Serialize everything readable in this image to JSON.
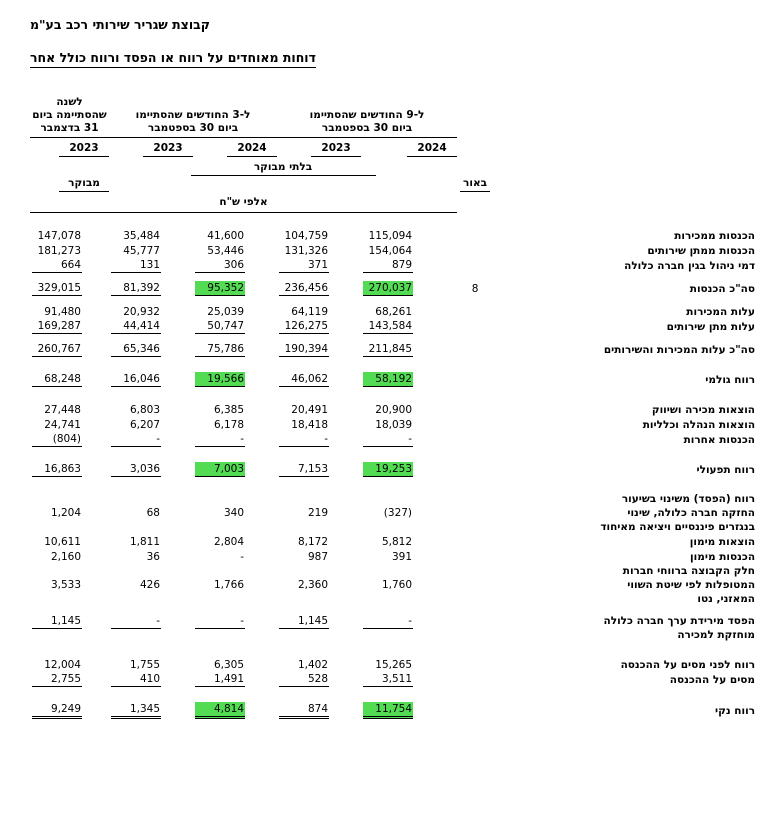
{
  "doc": {
    "company": "קבוצת שגריר שירותי רכב בע\"מ",
    "title": "דוחות מאוחדים על רווח או הפסד ורווח כולל אחר"
  },
  "table": {
    "highlight_color": "#54db54",
    "header": {
      "periods": [
        "ל-9 החודשים שהסתיימו\nביום 30 בספטמבר",
        "ל-3 החודשים שהסתיימו\nביום 30 בספטמבר",
        "לשנה\nשהסתיימה ביום\n31 בדצמבר"
      ],
      "years": [
        "2024",
        "2023",
        "2024",
        "2023",
        "2023"
      ],
      "unaudited": "בלתי מבוקר",
      "audited": "מבוקר",
      "note_col": "באור",
      "units": "אלפי ש\"ח"
    },
    "columns": [
      "9m_2024",
      "9m_2023",
      "3m_2024",
      "3m_2023",
      "fy_2023"
    ],
    "rows": [
      {
        "type": "sp",
        "size": "m"
      },
      {
        "label": "הכנסות ממכירות",
        "values": [
          "115,094",
          "104,759",
          "41,600",
          "35,484",
          "147,078"
        ]
      },
      {
        "label": "הכנסות ממתן שירותים",
        "values": [
          "154,064",
          "131,326",
          "53,446",
          "45,777",
          "181,273"
        ]
      },
      {
        "label": "דמי ניהול בגין חברה כלולה",
        "values": [
          "879",
          "371",
          "306",
          "131",
          "664"
        ],
        "rule": "single"
      },
      {
        "type": "sp",
        "size": "s"
      },
      {
        "label": "סה\"כ הכנסות",
        "note": "8",
        "values": [
          "270,037",
          "236,456",
          "95,352",
          "81,392",
          "329,015"
        ],
        "hl": [
          0,
          2
        ],
        "rule": "single"
      },
      {
        "type": "sp",
        "size": "s"
      },
      {
        "label": "עלות המכירות",
        "values": [
          "68,261",
          "64,119",
          "25,039",
          "20,932",
          "91,480"
        ]
      },
      {
        "label": "עלות מתן שירותים",
        "values": [
          "143,584",
          "126,275",
          "50,747",
          "44,414",
          "169,287"
        ],
        "rule": "single"
      },
      {
        "type": "sp",
        "size": "s"
      },
      {
        "label": "סה\"כ עלות המכירות והשירותים",
        "values": [
          "211,845",
          "190,394",
          "75,786",
          "65,346",
          "260,767"
        ],
        "rule": "single"
      },
      {
        "type": "sp",
        "size": "m"
      },
      {
        "label": "רווח גולמי",
        "values": [
          "58,192",
          "46,062",
          "19,566",
          "16,046",
          "68,248"
        ],
        "hl": [
          0,
          2
        ],
        "rule": "single"
      },
      {
        "type": "sp",
        "size": "m"
      },
      {
        "label": "הוצאות מכירה ושיווק",
        "values": [
          "20,900",
          "20,491",
          "6,385",
          "6,803",
          "27,448"
        ]
      },
      {
        "label": "הוצאות הנהלה וכלליות",
        "values": [
          "18,039",
          "18,418",
          "6,178",
          "6,207",
          "24,741"
        ]
      },
      {
        "label": "הכנסות אחרות",
        "values": [
          "-",
          "-",
          "-",
          "-",
          "(804)"
        ],
        "rule": "single"
      },
      {
        "type": "sp",
        "size": "m"
      },
      {
        "label": "רווח תפעולי",
        "values": [
          "19,253",
          "7,153",
          "7,003",
          "3,036",
          "16,863"
        ],
        "hl": [
          0,
          2
        ],
        "rule": "single"
      },
      {
        "type": "sp",
        "size": "m"
      },
      {
        "label": "רווח (הפסד) משינוי בשיעור\nהחזקה חברה כלולה, שינוי\nבנגזרים פיננסיים ויציאה מאיחוד",
        "values": [
          "(327)",
          "219",
          "340",
          "68",
          "1,204"
        ]
      },
      {
        "label": "הוצאות מימון",
        "values": [
          "5,812",
          "8,172",
          "2,804",
          "1,811",
          "10,611"
        ]
      },
      {
        "label": "הכנסות מימון",
        "values": [
          "391",
          "987",
          "-",
          "36",
          "2,160"
        ]
      },
      {
        "label": "חלק הקבוצה ברווחי חברות\nהמטופלות לפי שיטת השווי\nהמאזני, נטו",
        "values": [
          "1,760",
          "2,360",
          "1,766",
          "426",
          "3,533"
        ]
      },
      {
        "type": "sp",
        "size": "s"
      },
      {
        "label": "הפסד מירידת ערך חברה כלולה\nמוחזקת למכירה",
        "values": [
          "-",
          "1,145",
          "-",
          "-",
          "1,145"
        ],
        "rule": "single",
        "valign": "top"
      },
      {
        "type": "sp",
        "size": "m"
      },
      {
        "label": "רווח לפני מסים על ההכנסה",
        "values": [
          "15,265",
          "1,402",
          "6,305",
          "1,755",
          "12,004"
        ]
      },
      {
        "label": "מסים על ההכנסה",
        "values": [
          "3,511",
          "528",
          "1,491",
          "410",
          "2,755"
        ],
        "rule": "single"
      },
      {
        "type": "sp",
        "size": "m"
      },
      {
        "label": "רווח נקי",
        "values": [
          "11,754",
          "874",
          "4,814",
          "1,345",
          "9,249"
        ],
        "hl": [
          0,
          2
        ],
        "rule": "double"
      }
    ]
  }
}
